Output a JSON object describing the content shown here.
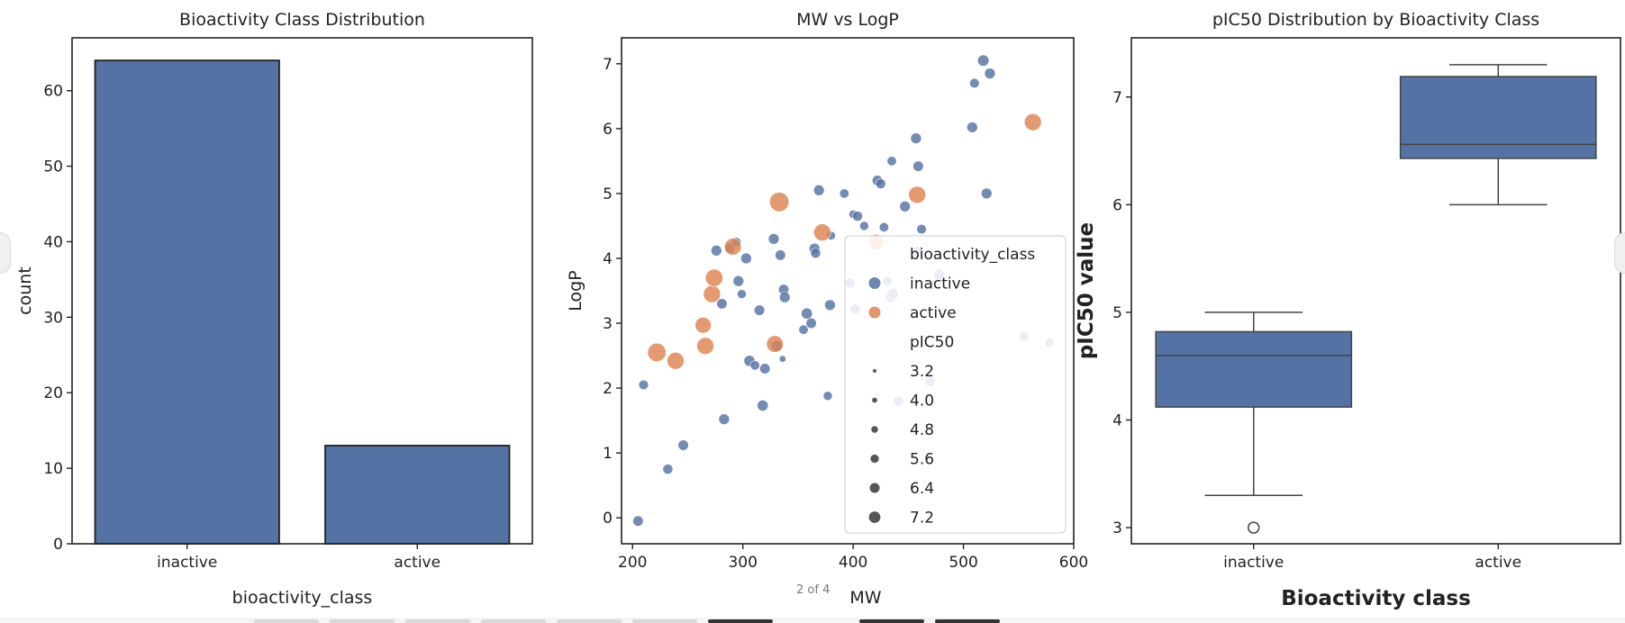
{
  "viewer": {
    "page_indicator": "2 of 4"
  },
  "colors": {
    "inactive": "#5572A4",
    "active": "#DD8452",
    "edge": "#1f1f1f",
    "axis": "#222222",
    "median": "#444444"
  },
  "chart_data": [
    {
      "type": "bar",
      "title": "Bioactivity Class Distribution",
      "xlabel": "bioactivity_class",
      "ylabel": "count",
      "categories": [
        "inactive",
        "active"
      ],
      "values": [
        64,
        13
      ],
      "ylim": [
        0,
        67
      ],
      "yticks": [
        0,
        10,
        20,
        30,
        40,
        50,
        60
      ],
      "grid": false
    },
    {
      "type": "scatter",
      "title": "MW vs LogP",
      "xlabel": "MW",
      "ylabel": "LogP",
      "xlim": [
        190,
        600
      ],
      "ylim": [
        -0.4,
        7.4
      ],
      "xticks": [
        200,
        300,
        400,
        500,
        600
      ],
      "yticks": [
        0,
        1,
        2,
        3,
        4,
        5,
        6,
        7
      ],
      "grid": false,
      "legend": {
        "placement": "bottom-right",
        "hue_title": "bioactivity_class",
        "hue_entries": [
          "inactive",
          "active"
        ],
        "size_title": "pIC50",
        "size_entries": [
          "3.2",
          "4.0",
          "4.8",
          "5.6",
          "6.4",
          "7.2"
        ]
      },
      "series": [
        {
          "name": "inactive",
          "points": [
            [
              205,
              -0.05,
              4.5
            ],
            [
              210,
              2.05,
              4.3
            ],
            [
              232,
              0.75,
              4.4
            ],
            [
              246,
              1.12,
              4.5
            ],
            [
              276,
              4.12,
              4.6
            ],
            [
              281,
              3.3,
              4.5
            ],
            [
              283,
              1.52,
              4.6
            ],
            [
              288,
              4.15,
              4.5
            ],
            [
              294,
              4.25,
              4.3
            ],
            [
              296,
              3.65,
              4.6
            ],
            [
              299,
              3.45,
              4.1
            ],
            [
              303,
              4.0,
              4.6
            ],
            [
              306,
              2.42,
              4.7
            ],
            [
              311,
              2.35,
              4.2
            ],
            [
              315,
              3.2,
              4.5
            ],
            [
              318,
              1.73,
              4.7
            ],
            [
              320,
              2.3,
              4.5
            ],
            [
              328,
              4.3,
              4.6
            ],
            [
              331,
              2.65,
              4.8
            ],
            [
              334,
              4.05,
              4.5
            ],
            [
              336,
              2.45,
              3.4
            ],
            [
              337,
              3.52,
              4.5
            ],
            [
              338,
              3.4,
              4.6
            ],
            [
              355,
              2.9,
              4.2
            ],
            [
              358,
              3.15,
              4.7
            ],
            [
              362,
              3.0,
              4.5
            ],
            [
              365,
              4.15,
              4.6
            ],
            [
              366,
              4.08,
              4.4
            ],
            [
              369,
              5.05,
              4.6
            ],
            [
              377,
              1.88,
              4.1
            ],
            [
              379,
              3.28,
              4.6
            ],
            [
              380,
              4.35,
              4.0
            ],
            [
              392,
              5.0,
              4.2
            ],
            [
              397,
              3.62,
              4.5
            ],
            [
              400,
              4.68,
              3.9
            ],
            [
              402,
              3.22,
              4.4
            ],
            [
              404,
              4.65,
              4.4
            ],
            [
              410,
              4.5,
              4.1
            ],
            [
              422,
              5.2,
              4.5
            ],
            [
              425,
              5.15,
              4.4
            ],
            [
              428,
              4.48,
              4.2
            ],
            [
              431,
              3.65,
              4.3
            ],
            [
              434,
              3.4,
              4.5
            ],
            [
              435,
              5.5,
              4.2
            ],
            [
              436,
              3.45,
              4.7
            ],
            [
              441,
              1.8,
              4.4
            ],
            [
              447,
              4.8,
              4.6
            ],
            [
              457,
              5.85,
              4.6
            ],
            [
              458,
              4.1,
              4.5
            ],
            [
              459,
              5.42,
              4.5
            ],
            [
              462,
              4.45,
              4.3
            ],
            [
              470,
              2.1,
              4.5
            ],
            [
              478,
              3.75,
              4.7
            ],
            [
              508,
              6.02,
              4.6
            ],
            [
              510,
              6.7,
              4.3
            ],
            [
              518,
              7.05,
              4.8
            ],
            [
              521,
              5.0,
              4.6
            ],
            [
              524,
              6.85,
              4.6
            ],
            [
              555,
              2.8,
              4.4
            ],
            [
              578,
              2.7,
              4.3
            ]
          ]
        },
        {
          "name": "active",
          "points": [
            [
              222,
              2.55,
              6.9
            ],
            [
              239,
              2.42,
              6.5
            ],
            [
              264,
              2.97,
              6.2
            ],
            [
              266,
              2.65,
              6.5
            ],
            [
              272,
              3.45,
              6.5
            ],
            [
              274,
              3.7,
              6.6
            ],
            [
              291,
              4.18,
              6.4
            ],
            [
              329,
              2.68,
              6.4
            ],
            [
              333,
              4.87,
              7.2
            ],
            [
              372,
              4.4,
              6.5
            ],
            [
              421,
              4.25,
              6.0
            ],
            [
              458,
              4.98,
              6.5
            ],
            [
              563,
              6.1,
              6.5
            ]
          ]
        }
      ]
    },
    {
      "type": "box",
      "title": "pIC50 Distribution by Bioactivity Class",
      "xlabel": "Bioactivity class",
      "ylabel": "pIC50 value",
      "categories": [
        "inactive",
        "active"
      ],
      "ylim": [
        2.85,
        7.55
      ],
      "yticks": [
        3,
        4,
        5,
        6,
        7
      ],
      "grid": false,
      "boxes": [
        {
          "category": "inactive",
          "whisker_low": 3.3,
          "q1": 4.12,
          "median": 4.6,
          "q3": 4.82,
          "whisker_high": 5.0,
          "outliers": [
            3.0
          ]
        },
        {
          "category": "active",
          "whisker_low": 6.0,
          "q1": 6.43,
          "median": 6.56,
          "q3": 7.19,
          "whisker_high": 7.3,
          "outliers": []
        }
      ]
    }
  ]
}
